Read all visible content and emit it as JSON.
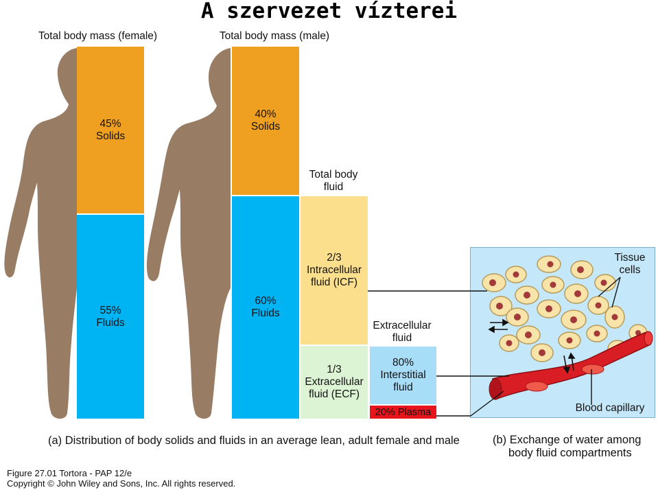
{
  "title": "A szervezet vízterei",
  "female": {
    "header": "Total body mass (female)",
    "solids": "45%\nSolids",
    "fluids": "55%\nFluids"
  },
  "male": {
    "header": "Total body mass (male)",
    "solids": "40%\nSolids",
    "fluids": "60%\nFluids"
  },
  "total_body_fluid": {
    "header": "Total body\nfluid",
    "icf": "2/3\nIntracellular\nfluid (ICF)",
    "ecf": "1/3\nExtracellular\nfluid (ECF)"
  },
  "extracellular": {
    "header": "Extracellular\nfluid",
    "interstitial": "80%\nInterstitial\nfluid",
    "plasma": "20% Plasma"
  },
  "panel_b": {
    "tissue_cells": "Tissue\ncells",
    "blood_capillary": "Blood capillary"
  },
  "captions": {
    "a": "(a) Distribution of body solids and fluids in an average lean, adult female and male",
    "b_line1": "(b) Exchange of water among",
    "b_line2": "body fluid compartments"
  },
  "footer": {
    "figure": "Figure 27.01  Tortora - PAP 12/e",
    "copyright": "Copyright © John Wiley and Sons, Inc. All rights reserved."
  },
  "colors": {
    "solids": "#F0A020",
    "fluids": "#00B4F4",
    "icf": "#FCDF8C",
    "ecf": "#DCF4D4",
    "interstitial": "#A8DDF8",
    "plasma": "#E8141C",
    "silhouette": "#987C64",
    "panel_bg": "#C4E8FA"
  }
}
